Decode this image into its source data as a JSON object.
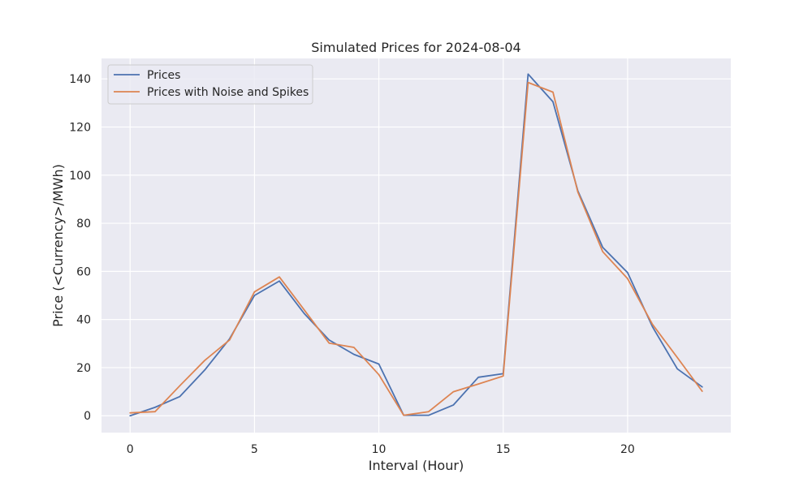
{
  "chart_data": {
    "type": "line",
    "title": "Simulated Prices for 2024-08-04",
    "xlabel": "Interval (Hour)",
    "ylabel": "Price (<Currency>/MWh)",
    "xlim": [
      -1.15,
      24.15
    ],
    "ylim": [
      -7,
      148.5
    ],
    "xticks": [
      0,
      5,
      10,
      15,
      20
    ],
    "yticks": [
      0,
      20,
      40,
      60,
      80,
      100,
      120,
      140
    ],
    "grid": true,
    "legend_position": "upper-left",
    "x": [
      0,
      1,
      2,
      3,
      4,
      5,
      6,
      7,
      8,
      9,
      10,
      11,
      12,
      13,
      14,
      15,
      16,
      17,
      18,
      19,
      20,
      21,
      22,
      23
    ],
    "series": [
      {
        "name": "Prices",
        "color": "#4c72b0",
        "values": [
          0,
          3.5,
          8,
          19,
          32,
          50,
          56,
          42.5,
          31.5,
          25.5,
          21.5,
          0.2,
          0.2,
          4.5,
          16,
          17.5,
          142,
          130.5,
          93.5,
          70,
          59.5,
          37,
          19.5,
          12
        ]
      },
      {
        "name": "Prices with Noise and Spikes",
        "color": "#dd8452",
        "values": [
          1.2,
          1.7,
          12.5,
          23,
          31.5,
          51.5,
          57.7,
          44,
          30.2,
          28.4,
          17.1,
          0.2,
          1.7,
          10,
          13.2,
          16.5,
          138.5,
          134.5,
          93,
          68.2,
          57,
          38,
          24.2,
          10.2
        ]
      }
    ]
  }
}
